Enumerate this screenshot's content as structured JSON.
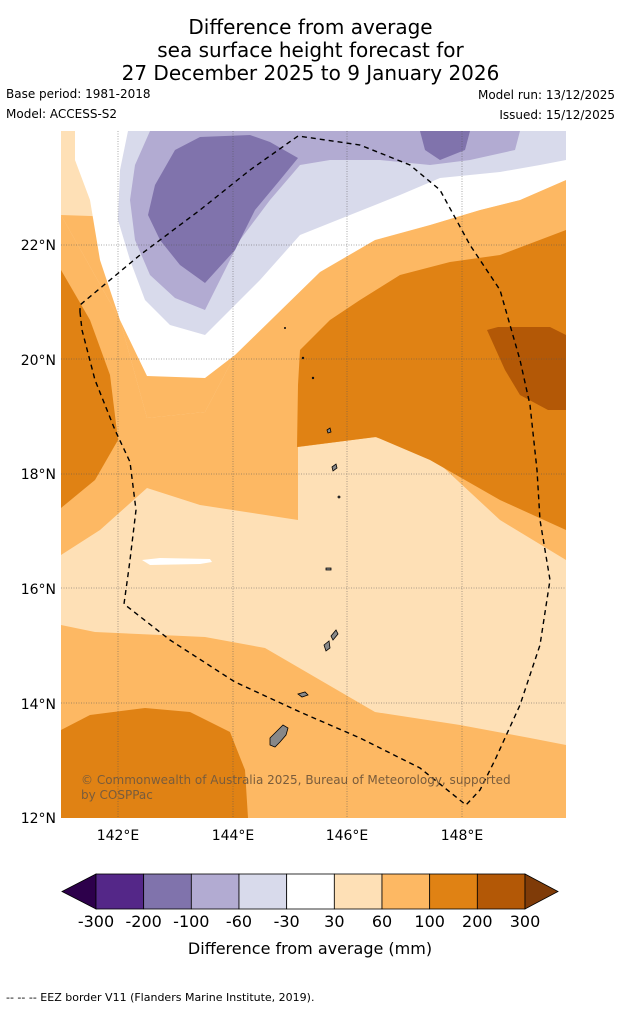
{
  "title": {
    "line1": "Difference from average",
    "line2": "sea surface height forecast for",
    "line3": "27 December 2025 to 9 January 2026"
  },
  "meta": {
    "base_period": "Base period: 1981-2018",
    "model": "Model: ACCESS-S2",
    "model_run": "Model run: 13/12/2025",
    "issued": "Issued: 15/12/2025"
  },
  "map": {
    "lon_range": [
      141,
      149.8
    ],
    "lat_range": [
      12,
      24
    ],
    "lon_ticks": [
      "142°E",
      "144°E",
      "146°E",
      "148°E"
    ],
    "lat_ticks": [
      "12°N",
      "14°N",
      "16°N",
      "18°N",
      "20°N",
      "22°N"
    ],
    "copyright_line1": "© Commonwealth of Australia 2025, Bureau of Meteorology, supported",
    "copyright_line2": "by COSPPac",
    "eez_style": "dashed"
  },
  "colorbar": {
    "labels": [
      "-300",
      "-200",
      "-100",
      "-60",
      "-30",
      "30",
      "60",
      "100",
      "200",
      "300"
    ],
    "colors": [
      "#2d004b",
      "#542788",
      "#8073ac",
      "#b2abd2",
      "#d8daeb",
      "#ffffff",
      "#fee0b6",
      "#fdb863",
      "#e08214",
      "#b35806",
      "#7f3b08"
    ],
    "axis_label": "Difference from average (mm)"
  },
  "footer": "--  --  -- EEZ border V11 (Flanders Marine Institute, 2019)."
}
